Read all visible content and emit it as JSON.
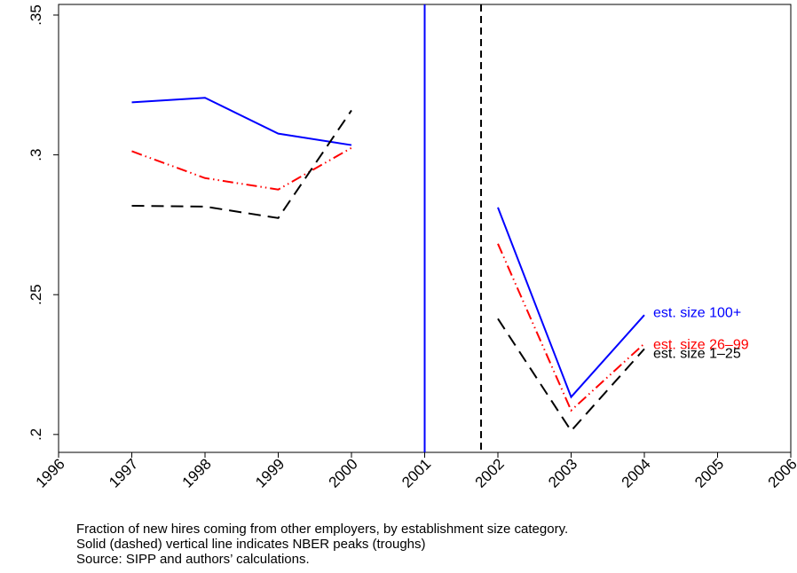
{
  "chart_data": {
    "type": "line",
    "x": [
      1997,
      1998,
      1999,
      2000,
      2001,
      2002,
      2003,
      2004
    ],
    "series": [
      {
        "name": "est. size 100+",
        "color": "#0000ff",
        "style": "solid",
        "values": [
          0.3188,
          0.3204,
          0.3076,
          0.3035,
          null,
          0.2812,
          0.2134,
          0.2427
        ]
      },
      {
        "name": "est. size 26–99",
        "color": "#ff0000",
        "style": "dashdot",
        "values": [
          0.3013,
          0.2917,
          0.2876,
          0.3025,
          null,
          0.2682,
          0.2086,
          0.2325
        ]
      },
      {
        "name": "est. size 1–25",
        "color": "#000000",
        "style": "dashed",
        "values": [
          0.2818,
          0.2815,
          0.2774,
          0.3159,
          null,
          0.2414,
          0.2013,
          0.2306
        ]
      }
    ],
    "xlim": [
      1996,
      2006
    ],
    "xticks": [
      1996,
      1997,
      1998,
      1999,
      2000,
      2001,
      2002,
      2003,
      2004,
      2005,
      2006
    ],
    "ylim": [
      0.1936,
      0.3538
    ],
    "yticks": [
      {
        "value": 0.2,
        "label": ".2"
      },
      {
        "value": 0.25,
        "label": ".25"
      },
      {
        "value": 0.3,
        "label": ".3"
      },
      {
        "value": 0.35,
        "label": ".35"
      }
    ],
    "vlines": [
      {
        "value": 2001,
        "color": "#0000ff",
        "style": "solid"
      },
      {
        "value": 2001.77,
        "color": "#000000",
        "style": "dashed"
      }
    ],
    "notes": [
      "Fraction of new hires coming from other employers, by establishment size category.",
      "Solid (dashed) vertical line indicates NBER peaks (troughs)",
      "Source: SIPP and authors’ calculations."
    ]
  }
}
